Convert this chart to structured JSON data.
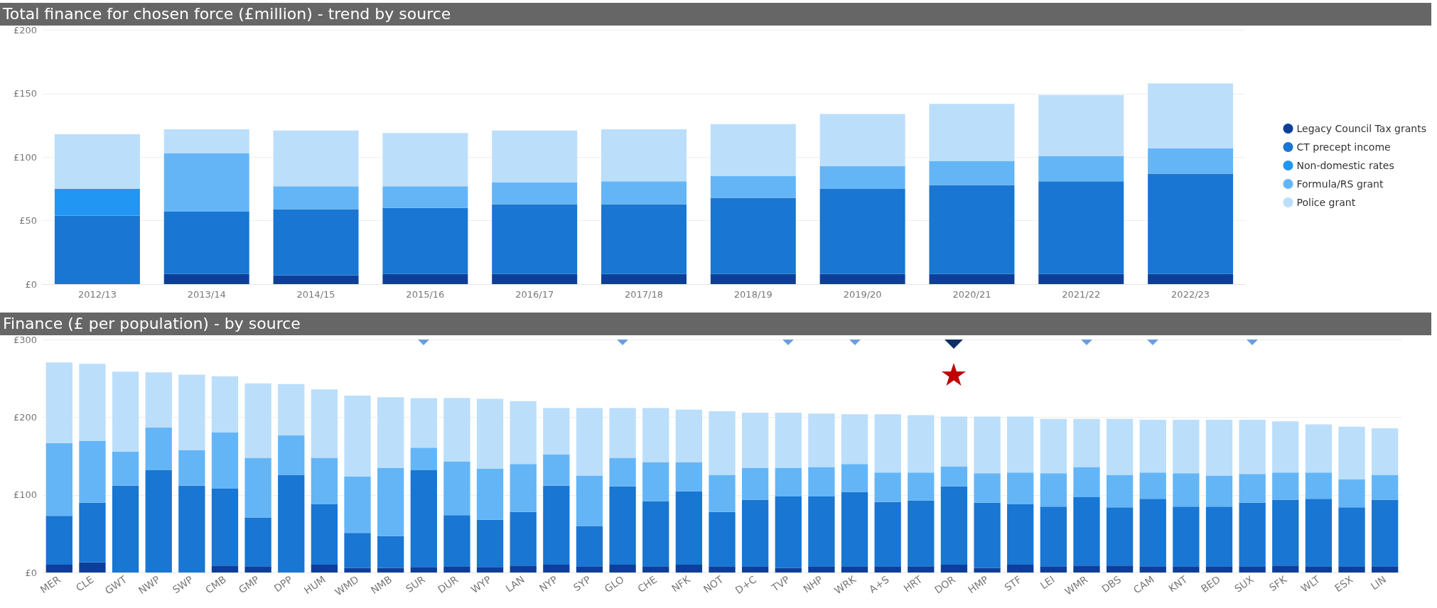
{
  "chart_data": [
    {
      "type": "bar",
      "title": "Total finance for chosen force (£million) - trend by source",
      "stacked": true,
      "categories": [
        "2012/13",
        "2013/14",
        "2014/15",
        "2015/16",
        "2016/17",
        "2017/18",
        "2018/19",
        "2019/20",
        "2020/21",
        "2021/22",
        "2022/23"
      ],
      "series": [
        {
          "name": "Legacy Council Tax grants",
          "color": "#0d3f9a",
          "values": [
            0,
            8,
            7,
            8,
            8,
            8,
            8,
            8,
            8,
            8,
            8
          ]
        },
        {
          "name": "CT precept income",
          "color": "#1976d2",
          "values": [
            54,
            49,
            52,
            52,
            55,
            55,
            60,
            67,
            70,
            73,
            79
          ]
        },
        {
          "name": "Non-domestic rates",
          "color": "#2196f3",
          "values": [
            21,
            0,
            0,
            0,
            0,
            0,
            0,
            0,
            0,
            0,
            0
          ]
        },
        {
          "name": "Formula/RS grant",
          "color": "#64b5f6",
          "values": [
            0,
            46,
            18,
            17,
            17,
            18,
            17,
            18,
            19,
            20,
            20
          ]
        },
        {
          "name": "Police grant",
          "color": "#bbdefb",
          "values": [
            43,
            19,
            44,
            42,
            41,
            41,
            41,
            41,
            45,
            48,
            51
          ]
        }
      ],
      "ylim": [
        0,
        200
      ],
      "yticks": [
        {
          "value": 0,
          "label": "£0"
        },
        {
          "value": 50,
          "label": "£50"
        },
        {
          "value": 100,
          "label": "£100"
        },
        {
          "value": 150,
          "label": "£150"
        },
        {
          "value": 200,
          "label": "£200"
        }
      ],
      "grid": "y",
      "legend": "right"
    },
    {
      "type": "bar",
      "title": "Finance (£ per population) - by source",
      "stacked": true,
      "categories": [
        "MER",
        "CLE",
        "GWT",
        "NWP",
        "SWP",
        "CMB",
        "GMP",
        "DPP",
        "HUM",
        "WMD",
        "NMB",
        "SUR",
        "DUR",
        "WYP",
        "LAN",
        "NYP",
        "SYP",
        "GLO",
        "CHE",
        "NFK",
        "NOT",
        "D+C",
        "TVP",
        "NHP",
        "WRK",
        "A+S",
        "HRT",
        "DOR",
        "HMP",
        "STF",
        "LEI",
        "WMR",
        "DBS",
        "CAM",
        "KNT",
        "BED",
        "SUX",
        "SFK",
        "WLT",
        "ESX",
        "LIN"
      ],
      "series": [
        {
          "color": "#0d3f9a",
          "values": [
            10,
            13,
            0,
            0,
            0,
            9,
            8,
            0,
            10,
            6,
            6,
            7,
            8,
            7,
            9,
            10,
            8,
            10,
            8,
            10,
            8,
            8,
            6,
            8,
            8,
            8,
            8,
            10,
            6,
            10,
            8,
            9,
            9,
            8,
            8,
            8,
            8,
            9,
            8,
            8,
            8
          ]
        },
        {
          "color": "#1976d2",
          "values": [
            63,
            77,
            112,
            132,
            112,
            99,
            63,
            126,
            78,
            45,
            41,
            125,
            66,
            61,
            69,
            102,
            52,
            101,
            84,
            95,
            70,
            86,
            92,
            90,
            96,
            83,
            85,
            101,
            84,
            78,
            77,
            88,
            75,
            87,
            77,
            77,
            82,
            85,
            87,
            76,
            86
          ]
        },
        {
          "color": "#64b5f6",
          "values": [
            94,
            80,
            44,
            55,
            46,
            73,
            77,
            51,
            60,
            73,
            88,
            29,
            69,
            66,
            62,
            40,
            65,
            37,
            50,
            37,
            48,
            41,
            37,
            38,
            36,
            38,
            36,
            26,
            38,
            41,
            43,
            39,
            42,
            34,
            43,
            40,
            37,
            35,
            34,
            36,
            32
          ]
        },
        {
          "color": "#bbdefb",
          "values": [
            104,
            99,
            103,
            71,
            97,
            72,
            96,
            66,
            88,
            104,
            91,
            64,
            82,
            90,
            81,
            60,
            87,
            64,
            70,
            68,
            82,
            71,
            71,
            69,
            64,
            75,
            74,
            64,
            73,
            72,
            70,
            62,
            72,
            68,
            69,
            72,
            70,
            66,
            62,
            68,
            60
          ]
        }
      ],
      "ylim": [
        0,
        300
      ],
      "yticks": [
        {
          "value": 0,
          "label": "£0"
        },
        {
          "value": 100,
          "label": "£100"
        },
        {
          "value": 200,
          "label": "£200"
        },
        {
          "value": 300,
          "label": "£300"
        }
      ],
      "grid": "y"
    }
  ]
}
